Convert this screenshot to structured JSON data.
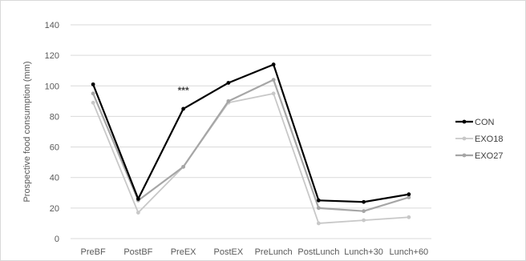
{
  "chart_data": {
    "type": "line",
    "title": "",
    "xlabel": "",
    "ylabel": "Prospective food consumption (mm)",
    "ylim": [
      0,
      140
    ],
    "yticks": [
      0,
      20,
      40,
      60,
      80,
      100,
      120,
      140
    ],
    "grid": true,
    "legend_position": "right",
    "categories": [
      "PreBF",
      "PostBF",
      "PreEX",
      "PostEX",
      "PreLunch",
      "PostLunch",
      "Lunch+30",
      "Lunch+60"
    ],
    "series": [
      {
        "name": "CON",
        "color": "#000000",
        "values": [
          101,
          26,
          85,
          102,
          114,
          25,
          24,
          29
        ]
      },
      {
        "name": "EXO18",
        "color": "#c8c8c8",
        "values": [
          89,
          17,
          47,
          89,
          95,
          10,
          12,
          14
        ]
      },
      {
        "name": "EXO27",
        "color": "#a6a6a6",
        "values": [
          95,
          25,
          47,
          90,
          104,
          20,
          18,
          27
        ]
      }
    ],
    "annotations": [
      {
        "text": "***",
        "category": "PreEX",
        "y": 97
      }
    ]
  }
}
